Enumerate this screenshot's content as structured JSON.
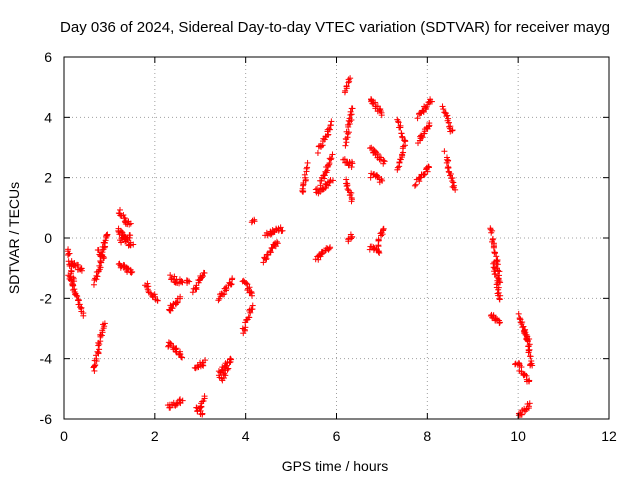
{
  "chart_data": {
    "type": "scatter",
    "title": "Day 036 of 2024, Sidereal Day-to-day VTEC variation (SDTVAR) for receiver mayg",
    "xlabel": "GPS time / hours",
    "ylabel": "SDTVAR / TECUs",
    "xlim": [
      0,
      12
    ],
    "ylim": [
      -6,
      6
    ],
    "x_ticks": [
      0,
      2,
      4,
      6,
      8,
      10,
      12
    ],
    "y_ticks": [
      -6,
      -4,
      -2,
      0,
      2,
      4,
      6
    ],
    "x_tick_labels": [
      "0",
      "2",
      "4",
      "6",
      "8",
      "10",
      "12"
    ],
    "y_tick_labels": [
      "-6",
      "-4",
      "-2",
      "0",
      "2",
      "4",
      "6"
    ],
    "grid": true,
    "marker": "+",
    "color": "#ff0000",
    "series": [
      {
        "name": "SDTVAR",
        "segments": [
          {
            "x0": 0.08,
            "y0": -0.4,
            "x1": 0.22,
            "y1": -1.6
          },
          {
            "x0": 0.1,
            "y0": -1.2,
            "x1": 0.42,
            "y1": -2.5
          },
          {
            "x0": 0.15,
            "y0": -0.8,
            "x1": 0.4,
            "y1": -1.1
          },
          {
            "x0": 0.65,
            "y0": -4.4,
            "x1": 0.88,
            "y1": -2.8
          },
          {
            "x0": 0.68,
            "y0": -1.5,
            "x1": 0.9,
            "y1": -0.2
          },
          {
            "x0": 0.75,
            "y0": -0.4,
            "x1": 0.88,
            "y1": -0.7
          },
          {
            "x0": 0.85,
            "y0": -0.3,
            "x1": 0.95,
            "y1": 0.2
          },
          {
            "x0": 1.2,
            "y0": 0.9,
            "x1": 1.45,
            "y1": 0.4
          },
          {
            "x0": 1.18,
            "y0": 0.3,
            "x1": 1.5,
            "y1": -0.3
          },
          {
            "x0": 1.2,
            "y0": -0.9,
            "x1": 1.5,
            "y1": -1.1
          },
          {
            "x0": 1.25,
            "y0": -0.1,
            "x1": 1.45,
            "y1": 0.1
          },
          {
            "x0": 1.8,
            "y0": -1.5,
            "x1": 2.05,
            "y1": -2.1
          },
          {
            "x0": 2.3,
            "y0": -2.4,
            "x1": 2.55,
            "y1": -2.0
          },
          {
            "x0": 2.35,
            "y0": -1.3,
            "x1": 2.6,
            "y1": -1.5
          },
          {
            "x0": 2.3,
            "y0": -3.5,
            "x1": 2.6,
            "y1": -3.9
          },
          {
            "x0": 2.3,
            "y0": -5.6,
            "x1": 2.6,
            "y1": -5.4
          },
          {
            "x0": 2.7,
            "y0": -1.4,
            "x1": 2.75,
            "y1": -1.5
          },
          {
            "x0": 2.85,
            "y0": -1.8,
            "x1": 3.1,
            "y1": -1.1
          },
          {
            "x0": 2.9,
            "y0": -4.3,
            "x1": 3.1,
            "y1": -4.1
          },
          {
            "x0": 2.9,
            "y0": -5.6,
            "x1": 3.05,
            "y1": -5.8
          },
          {
            "x0": 3.0,
            "y0": -5.6,
            "x1": 3.1,
            "y1": -5.3
          },
          {
            "x0": 3.4,
            "y0": -2.0,
            "x1": 3.7,
            "y1": -1.4
          },
          {
            "x0": 3.4,
            "y0": -4.5,
            "x1": 3.7,
            "y1": -4.0
          },
          {
            "x0": 3.45,
            "y0": -4.7,
            "x1": 3.6,
            "y1": -4.4
          },
          {
            "x0": 3.95,
            "y0": -1.4,
            "x1": 4.15,
            "y1": -1.9
          },
          {
            "x0": 3.95,
            "y0": -3.1,
            "x1": 4.15,
            "y1": -2.3
          },
          {
            "x0": 4.15,
            "y0": 0.5,
            "x1": 4.2,
            "y1": 0.6
          },
          {
            "x0": 4.45,
            "y0": 0.1,
            "x1": 4.8,
            "y1": 0.3
          },
          {
            "x0": 4.4,
            "y0": -0.8,
            "x1": 4.7,
            "y1": -0.1
          },
          {
            "x0": 5.25,
            "y0": 1.5,
            "x1": 5.35,
            "y1": 2.4
          },
          {
            "x0": 5.55,
            "y0": -0.7,
            "x1": 5.85,
            "y1": -0.3
          },
          {
            "x0": 5.55,
            "y0": 1.5,
            "x1": 5.9,
            "y1": 1.9
          },
          {
            "x0": 5.6,
            "y0": 2.9,
            "x1": 5.9,
            "y1": 3.8
          },
          {
            "x0": 5.65,
            "y0": 1.8,
            "x1": 5.9,
            "y1": 2.7
          },
          {
            "x0": 6.2,
            "y0": 4.9,
            "x1": 6.3,
            "y1": 5.3
          },
          {
            "x0": 6.2,
            "y0": 3.1,
            "x1": 6.35,
            "y1": 4.3
          },
          {
            "x0": 6.15,
            "y0": 2.6,
            "x1": 6.35,
            "y1": 2.4
          },
          {
            "x0": 6.2,
            "y0": 1.9,
            "x1": 6.35,
            "y1": 1.2
          },
          {
            "x0": 6.25,
            "y0": -0.1,
            "x1": 6.35,
            "y1": 0.1
          },
          {
            "x0": 6.75,
            "y0": 4.6,
            "x1": 7.0,
            "y1": 4.1
          },
          {
            "x0": 6.75,
            "y0": 3.0,
            "x1": 7.05,
            "y1": 2.5
          },
          {
            "x0": 6.75,
            "y0": 2.1,
            "x1": 7.0,
            "y1": 1.9
          },
          {
            "x0": 6.75,
            "y0": -0.3,
            "x1": 6.95,
            "y1": -0.5
          },
          {
            "x0": 6.9,
            "y0": -0.2,
            "x1": 7.05,
            "y1": 0.3
          },
          {
            "x0": 7.35,
            "y0": 3.9,
            "x1": 7.5,
            "y1": 3.2
          },
          {
            "x0": 7.35,
            "y0": 2.3,
            "x1": 7.5,
            "y1": 3.0
          },
          {
            "x0": 7.8,
            "y0": 4.0,
            "x1": 8.1,
            "y1": 4.6
          },
          {
            "x0": 7.8,
            "y0": 3.2,
            "x1": 8.05,
            "y1": 3.8
          },
          {
            "x0": 7.75,
            "y0": 1.8,
            "x1": 8.05,
            "y1": 2.4
          },
          {
            "x0": 8.35,
            "y0": 4.3,
            "x1": 8.55,
            "y1": 3.5
          },
          {
            "x0": 8.4,
            "y0": 2.8,
            "x1": 8.6,
            "y1": 1.6
          },
          {
            "x0": 9.4,
            "y0": 0.3,
            "x1": 9.6,
            "y1": -1.5
          },
          {
            "x0": 9.45,
            "y0": -0.8,
            "x1": 9.6,
            "y1": -2.1
          },
          {
            "x0": 9.4,
            "y0": -2.5,
            "x1": 9.6,
            "y1": -2.8
          },
          {
            "x0": 9.95,
            "y0": -4.1,
            "x1": 10.25,
            "y1": -4.8
          },
          {
            "x0": 10.0,
            "y0": -2.6,
            "x1": 10.25,
            "y1": -3.5
          },
          {
            "x0": 10.15,
            "y0": -3.0,
            "x1": 10.3,
            "y1": -4.3
          },
          {
            "x0": 10.0,
            "y0": -5.9,
            "x1": 10.25,
            "y1": -5.5
          }
        ]
      }
    ]
  }
}
